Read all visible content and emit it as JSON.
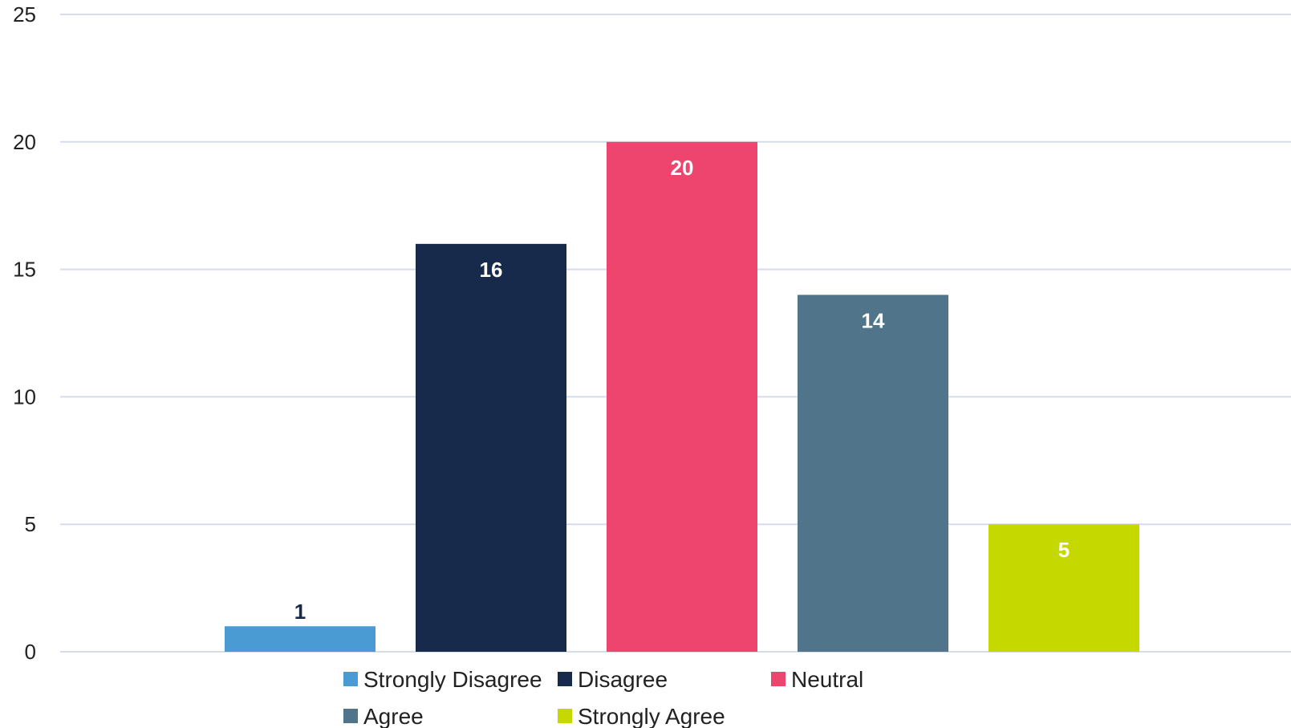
{
  "chart_data": {
    "type": "bar",
    "title": "",
    "xlabel": "",
    "ylabel": "",
    "categories": [
      "Strongly Disagree",
      "Disagree",
      "Neutral",
      "Agree",
      "Strongly Agree"
    ],
    "values": [
      1,
      16,
      20,
      14,
      5
    ],
    "colors": [
      "#4a9ad4",
      "#172a4b",
      "#ee456e",
      "#50758a",
      "#c5d800"
    ],
    "data_label_colors": [
      "#172a4b",
      "#ffffff",
      "#ffffff",
      "#ffffff",
      "#ffffff"
    ],
    "ylim": [
      0,
      25
    ],
    "yticks": [
      0,
      5,
      10,
      15,
      20,
      25
    ],
    "grid": true,
    "gridline_color": "#d5dcec",
    "legend": {
      "position": "bottom",
      "entries": [
        "Strongly Disagree",
        "Disagree",
        "Neutral",
        "Agree",
        "Strongly Agree"
      ]
    }
  }
}
